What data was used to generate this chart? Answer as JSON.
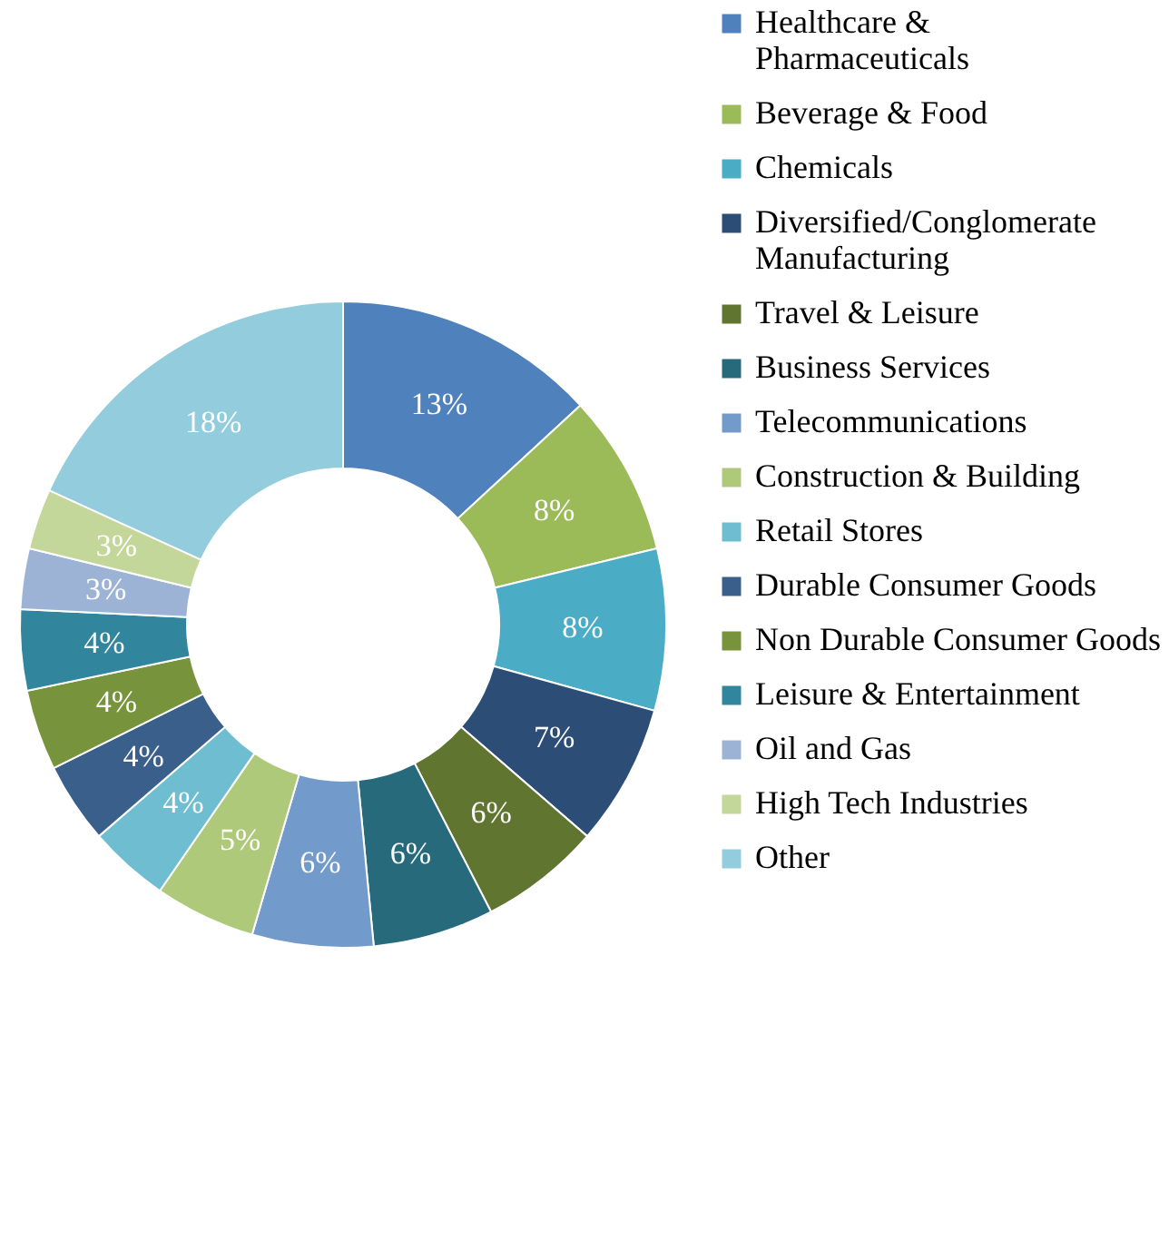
{
  "chart_data": {
    "type": "donut",
    "categories": [
      "Healthcare & Pharmaceuticals",
      "Beverage & Food",
      "Chemicals",
      "Diversified/Conglomerate Manufacturing",
      "Travel & Leisure",
      "Business Services",
      "Telecommunications",
      "Construction & Building",
      "Retail Stores",
      "Durable Consumer Goods",
      "Non Durable Consumer Goods",
      "Leisure & Entertainment",
      "Oil and Gas",
      "High Tech Industries",
      "Other"
    ],
    "values": [
      13,
      8,
      8,
      7,
      6,
      6,
      6,
      5,
      4,
      4,
      4,
      4,
      3,
      3,
      18
    ],
    "value_labels": [
      "13%",
      "8%",
      "8%",
      "7%",
      "6%",
      "6%",
      "6%",
      "5%",
      "4%",
      "4%",
      "4%",
      "4%",
      "3%",
      "3%",
      "18%"
    ],
    "colors": [
      "#4f81bd",
      "#9bbb59",
      "#4bacc6",
      "#2c4d75",
      "#5f7530",
      "#276a7c",
      "#729aca",
      "#afc97a",
      "#6fbdd1",
      "#3a5f8b",
      "#77933c",
      "#31859c",
      "#9cb3d6",
      "#c4d79b",
      "#93cddd"
    ],
    "legend": "right"
  }
}
